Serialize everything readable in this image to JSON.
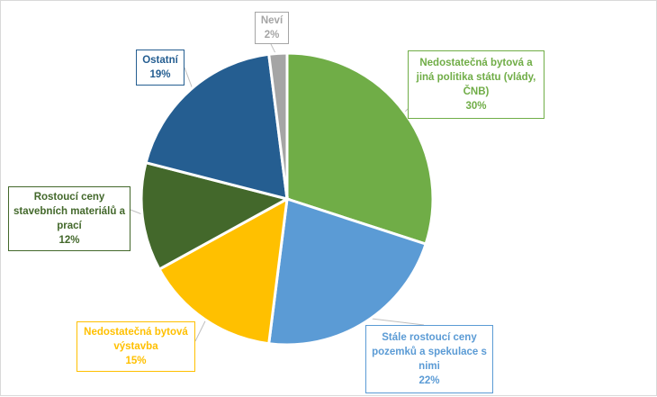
{
  "chart_data": {
    "type": "pie",
    "title": "",
    "slices": [
      {
        "label": "Nedostatečná bytová a jiná politika státu (vlády, ČNB)",
        "label_lines": [
          "Nedostatečná bytová a",
          "jiná politika státu (vlády,",
          "ČNB)"
        ],
        "value": 30,
        "value_label": "30%",
        "color": "#70ad47"
      },
      {
        "label": "Stále rostoucí ceny pozemků a spekulace s nimi",
        "label_lines": [
          "Stále rostoucí ceny",
          "pozemků a spekulace s",
          "nimi"
        ],
        "value": 22,
        "value_label": "22%",
        "color": "#5b9bd5"
      },
      {
        "label": "Nedostatečná bytová výstavba",
        "label_lines": [
          "Nedostatečná bytová",
          "výstavba"
        ],
        "value": 15,
        "value_label": "15%",
        "color": "#ffc000"
      },
      {
        "label": "Rostoucí ceny stavebních materiálů a prací",
        "label_lines": [
          "Rostoucí ceny",
          "stavebních materiálů a",
          "prací"
        ],
        "value": 12,
        "value_label": "12%",
        "color": "#43682b"
      },
      {
        "label": "Ostatní",
        "label_lines": [
          "Ostatní"
        ],
        "value": 19,
        "value_label": "19%",
        "color": "#255e91"
      },
      {
        "label": "Neví",
        "label_lines": [
          "Neví"
        ],
        "value": 2,
        "value_label": "2%",
        "color": "#a5a5a5"
      }
    ],
    "start_angle_deg": 0,
    "direction": "clockwise",
    "legend": "none",
    "data_labels": "callouts"
  }
}
